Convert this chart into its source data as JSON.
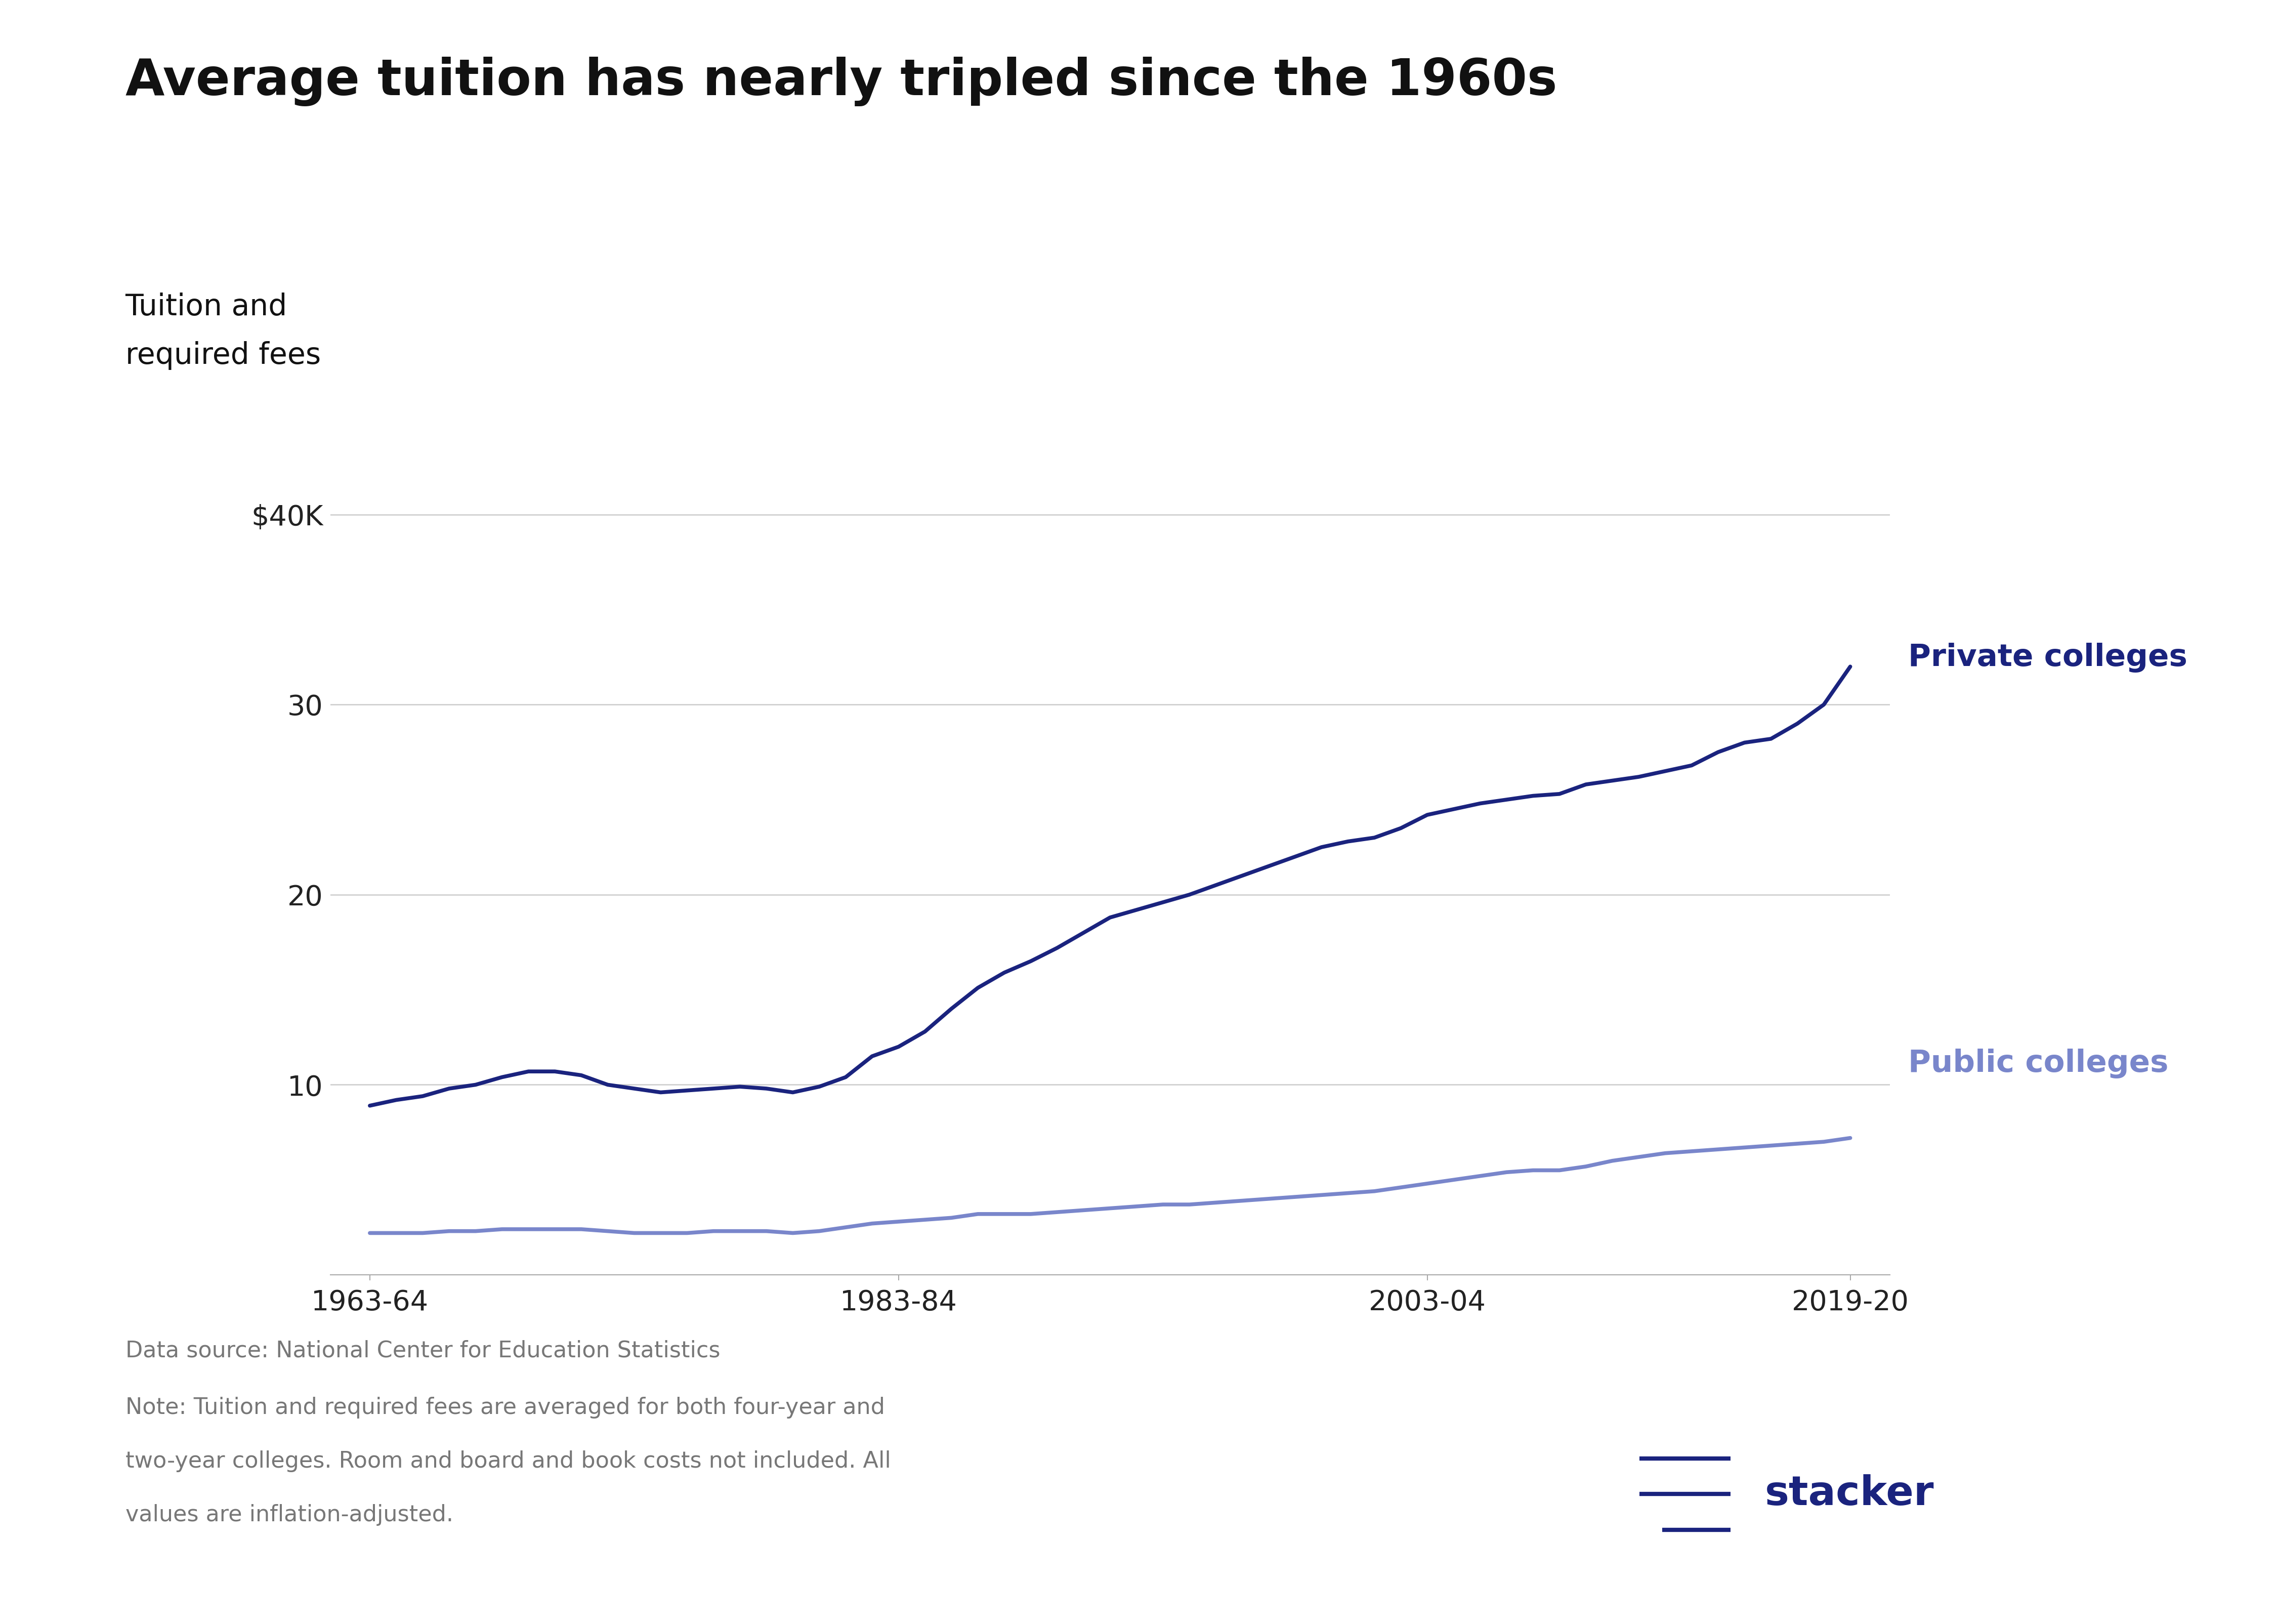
{
  "title": "Average tuition has nearly tripled since the 1960s",
  "ylabel_line1": "Tuition and",
  "ylabel_line2": "required fees",
  "background_color": "#ffffff",
  "private_color": "#1a237e",
  "public_color": "#7986cb",
  "grid_color": "#cccccc",
  "label_private": "Private colleges",
  "label_public": "Public colleges",
  "ytick_labels": [
    "$40K",
    "30",
    "20",
    "10"
  ],
  "ytick_values": [
    40000,
    30000,
    20000,
    10000
  ],
  "ylim": [
    0,
    44000
  ],
  "xtick_labels": [
    "1963-64",
    "1983-84",
    "2003-04",
    "2019-20"
  ],
  "xtick_positions": [
    1963,
    1983,
    2003,
    2019
  ],
  "data_source": "Data source: National Center for Education Statistics",
  "note_line1": "Note: Tuition and required fees are averaged for both four-year and",
  "note_line2": "two-year colleges. Room and board and book costs not included. All",
  "note_line3": "values are inflation-adjusted.",
  "years": [
    1963,
    1964,
    1965,
    1966,
    1967,
    1968,
    1969,
    1970,
    1971,
    1972,
    1973,
    1974,
    1975,
    1976,
    1977,
    1978,
    1979,
    1980,
    1981,
    1982,
    1983,
    1984,
    1985,
    1986,
    1987,
    1988,
    1989,
    1990,
    1991,
    1992,
    1993,
    1994,
    1995,
    1996,
    1997,
    1998,
    1999,
    2000,
    2001,
    2002,
    2003,
    2004,
    2005,
    2006,
    2007,
    2008,
    2009,
    2010,
    2011,
    2012,
    2013,
    2014,
    2015,
    2016,
    2017,
    2018,
    2019
  ],
  "private_values": [
    8900,
    9200,
    9400,
    9800,
    10000,
    10400,
    10700,
    10700,
    10500,
    10000,
    9800,
    9600,
    9700,
    9800,
    9900,
    9800,
    9600,
    9900,
    10400,
    11500,
    12000,
    12800,
    14000,
    15100,
    15900,
    16500,
    17200,
    18000,
    18800,
    19200,
    19600,
    20000,
    20500,
    21000,
    21500,
    22000,
    22500,
    22800,
    23000,
    23500,
    24200,
    24500,
    24800,
    25000,
    25200,
    25300,
    25800,
    26000,
    26200,
    26500,
    26800,
    27500,
    28000,
    28200,
    29000,
    30000,
    32000
  ],
  "public_values": [
    2200,
    2200,
    2200,
    2300,
    2300,
    2400,
    2400,
    2400,
    2400,
    2300,
    2200,
    2200,
    2200,
    2300,
    2300,
    2300,
    2200,
    2300,
    2500,
    2700,
    2800,
    2900,
    3000,
    3200,
    3200,
    3200,
    3300,
    3400,
    3500,
    3600,
    3700,
    3700,
    3800,
    3900,
    4000,
    4100,
    4200,
    4300,
    4400,
    4600,
    4800,
    5000,
    5200,
    5400,
    5500,
    5500,
    5700,
    6000,
    6200,
    6400,
    6500,
    6600,
    6700,
    6800,
    6900,
    7000,
    7200
  ],
  "logo_color": "#1a237e",
  "footer_color": "#777777",
  "title_fontsize": 72,
  "ylabel_fontsize": 42,
  "tick_fontsize": 40,
  "label_fontsize": 44,
  "footer_fontsize": 32,
  "line_width": 5.5
}
